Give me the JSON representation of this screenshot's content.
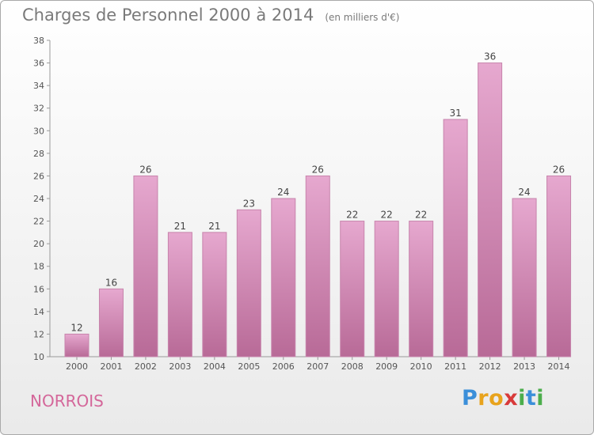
{
  "title": "Charges de Personnel 2000 à 2014",
  "subtitle": "(en milliers d'€)",
  "commune": "NORROIS",
  "logo": {
    "letters": [
      "P",
      "r",
      "o",
      "x",
      "i",
      "t",
      "i"
    ],
    "colors": [
      "#3b8fd9",
      "#e8a31c",
      "#e8a31c",
      "#d83a3a",
      "#4cae4c",
      "#3b8fd9",
      "#4cae4c"
    ]
  },
  "colors": {
    "bar_top": "#e6a8cf",
    "bar_bottom": "#b86a97",
    "bar_stroke": "#c784ac"
  },
  "chart_data": {
    "type": "bar",
    "categories": [
      "2000",
      "2001",
      "2002",
      "2003",
      "2004",
      "2005",
      "2006",
      "2007",
      "2008",
      "2009",
      "2010",
      "2011",
      "2012",
      "2013",
      "2014"
    ],
    "values": [
      12,
      16,
      26,
      21,
      21,
      23,
      24,
      26,
      22,
      22,
      22,
      31,
      36,
      24,
      26
    ],
    "data_labels": [
      "12",
      "16",
      "26",
      "21",
      "21",
      "23",
      "24",
      "26",
      "22",
      "22",
      "22",
      "31",
      "36",
      "24",
      "26"
    ],
    "y_ticks": [
      "10",
      "12",
      "14",
      "16",
      "18",
      "20",
      "22",
      "24",
      "26",
      "28",
      "30",
      "32",
      "34",
      "36",
      "38"
    ],
    "ylim": [
      10,
      38
    ],
    "grid": false
  }
}
